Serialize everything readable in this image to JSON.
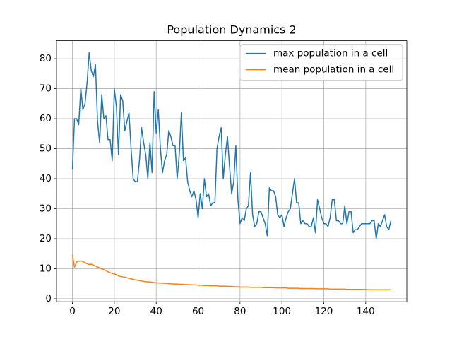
{
  "chart_data": {
    "type": "line",
    "title": "Population Dynamics 2",
    "x": [
      0,
      1,
      2,
      3,
      4,
      5,
      6,
      7,
      8,
      9,
      10,
      11,
      12,
      13,
      14,
      15,
      16,
      17,
      18,
      19,
      20,
      21,
      22,
      23,
      24,
      25,
      26,
      27,
      28,
      29,
      30,
      31,
      32,
      33,
      34,
      35,
      36,
      37,
      38,
      39,
      40,
      41,
      42,
      43,
      44,
      45,
      46,
      47,
      48,
      49,
      50,
      51,
      52,
      53,
      54,
      55,
      56,
      57,
      58,
      59,
      60,
      61,
      62,
      63,
      64,
      65,
      66,
      67,
      68,
      69,
      70,
      71,
      72,
      73,
      74,
      75,
      76,
      77,
      78,
      79,
      80,
      81,
      82,
      83,
      84,
      85,
      86,
      87,
      88,
      89,
      90,
      91,
      92,
      93,
      94,
      95,
      96,
      97,
      98,
      99,
      100,
      101,
      102,
      103,
      104,
      105,
      106,
      107,
      108,
      109,
      110,
      111,
      112,
      113,
      114,
      115,
      116,
      117,
      118,
      119,
      120,
      121,
      122,
      123,
      124,
      125,
      126,
      127,
      128,
      129,
      130,
      131,
      132,
      133,
      134,
      135,
      136,
      137,
      138,
      139,
      140,
      141,
      142,
      143,
      144,
      145,
      146,
      147,
      148,
      149,
      150,
      151,
      152
    ],
    "series": [
      {
        "name": "max population in a cell",
        "color": "#1f77b4",
        "values": [
          43,
          60,
          60,
          58,
          70,
          63,
          65,
          72,
          82,
          76,
          74,
          78,
          59,
          52,
          68,
          60,
          61,
          53,
          53,
          46,
          70,
          64,
          48,
          68,
          66,
          56,
          59,
          62,
          50,
          40,
          39,
          39,
          46,
          57,
          52,
          48,
          40,
          52,
          42,
          69,
          55,
          63,
          50,
          42,
          46,
          48,
          56,
          54,
          51,
          51,
          40,
          48,
          62,
          46,
          47,
          39,
          36,
          34,
          36,
          33,
          27,
          35,
          30,
          40,
          34,
          35,
          31,
          32,
          32,
          50,
          54,
          57,
          40,
          48,
          54,
          44,
          35,
          39,
          51,
          33,
          25,
          27,
          26,
          30,
          31,
          42,
          28,
          24,
          25,
          29,
          29,
          27,
          25,
          21,
          37,
          36,
          36,
          34,
          28,
          27,
          28,
          24,
          27,
          29,
          30,
          35,
          40,
          32,
          32,
          25,
          26,
          25,
          25,
          24,
          24,
          27,
          22,
          33,
          30,
          27,
          25,
          25,
          24,
          27,
          33,
          33,
          26,
          26,
          25,
          25,
          31,
          25,
          29,
          29,
          22,
          23,
          23,
          24,
          25,
          25,
          25,
          25,
          25,
          26,
          26,
          20,
          25,
          24,
          26,
          28,
          24,
          23,
          26
        ]
      },
      {
        "name": "mean population in a cell",
        "color": "#ff7f0e",
        "values": [
          14.6,
          10.5,
          12.2,
          12.5,
          12.6,
          12.4,
          12.0,
          11.7,
          11.4,
          11.5,
          11.2,
          10.9,
          10.6,
          10.3,
          9.9,
          9.7,
          9.4,
          9.0,
          8.7,
          8.4,
          8.3,
          8.0,
          7.6,
          7.4,
          7.3,
          7.2,
          7.0,
          6.8,
          6.6,
          6.5,
          6.3,
          6.2,
          6.0,
          5.9,
          5.8,
          5.7,
          5.6,
          5.6,
          5.5,
          5.4,
          5.3,
          5.3,
          5.2,
          5.2,
          5.1,
          5.1,
          5.0,
          5.0,
          4.9,
          4.9,
          4.9,
          4.8,
          4.8,
          4.8,
          4.7,
          4.7,
          4.7,
          4.6,
          4.6,
          4.6,
          4.5,
          4.5,
          4.5,
          4.4,
          4.4,
          4.4,
          4.3,
          4.3,
          4.3,
          4.3,
          4.2,
          4.2,
          4.2,
          4.2,
          4.1,
          4.1,
          4.1,
          4.0,
          4.0,
          4.0,
          3.9,
          3.9,
          3.9,
          3.9,
          3.9,
          3.8,
          3.8,
          3.8,
          3.8,
          3.8,
          3.8,
          3.7,
          3.7,
          3.7,
          3.7,
          3.7,
          3.7,
          3.6,
          3.6,
          3.6,
          3.6,
          3.6,
          3.6,
          3.5,
          3.5,
          3.5,
          3.5,
          3.5,
          3.5,
          3.4,
          3.4,
          3.4,
          3.4,
          3.4,
          3.4,
          3.4,
          3.3,
          3.3,
          3.3,
          3.3,
          3.3,
          3.3,
          3.3,
          3.2,
          3.2,
          3.2,
          3.2,
          3.2,
          3.2,
          3.2,
          3.2,
          3.1,
          3.1,
          3.1,
          3.1,
          3.1,
          3.1,
          3.1,
          3.1,
          3.1,
          3.1,
          3.0,
          3.0,
          3.0,
          3.0,
          3.0,
          3.0,
          3.0,
          3.0,
          3.0,
          3.0,
          3.0,
          3.0
        ]
      }
    ],
    "xlim": [
      -7.6,
      159.6
    ],
    "xticks": [
      0,
      20,
      40,
      60,
      80,
      100,
      120,
      140
    ],
    "ylim": [
      -1.0,
      86.0
    ],
    "yticks": [
      0,
      10,
      20,
      30,
      40,
      50,
      60,
      70,
      80
    ],
    "grid": true,
    "legend": "upper right"
  }
}
